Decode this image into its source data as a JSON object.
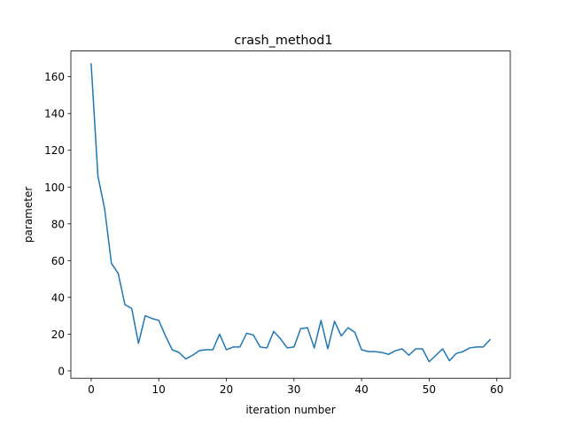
{
  "chart_data": {
    "type": "line",
    "title": "crash_method1",
    "xlabel": "iteration number",
    "ylabel": "parameter",
    "xlim": [
      -3,
      62
    ],
    "ylim": [
      -4,
      174
    ],
    "xticks": [
      0,
      10,
      20,
      30,
      40,
      50,
      60
    ],
    "yticks": [
      0,
      20,
      40,
      60,
      80,
      100,
      120,
      140,
      160
    ],
    "grid": false,
    "line_color": "#1f77b4",
    "series": [
      {
        "x": [
          0,
          1,
          2,
          3,
          4,
          5,
          6,
          7,
          8,
          9,
          10,
          11,
          12,
          13,
          14,
          15,
          16,
          17,
          18,
          19,
          20,
          21,
          22,
          23,
          24,
          25,
          26,
          27,
          28,
          29,
          30,
          31,
          32,
          33,
          34,
          35,
          36,
          37,
          38,
          39,
          40,
          41,
          42,
          43,
          44,
          45,
          46,
          47,
          48,
          49,
          50,
          51,
          52,
          53,
          54,
          55,
          56,
          57,
          58,
          59
        ],
        "values": [
          167,
          106,
          88,
          58.5,
          53,
          36,
          34,
          15,
          30,
          28.5,
          27.5,
          19,
          11.5,
          10,
          6.5,
          8.5,
          11,
          11.5,
          11.5,
          20,
          11.5,
          13,
          13,
          20.5,
          19.5,
          13,
          12.5,
          21.5,
          17.5,
          12.5,
          13,
          23,
          23.5,
          12.5,
          27.5,
          12,
          27,
          19,
          23.5,
          21,
          11.5,
          10.5,
          10.5,
          10,
          9,
          11,
          12,
          8.5,
          12,
          12,
          5,
          8.5,
          12,
          5.5,
          9.5,
          10.5,
          12.5,
          13,
          13,
          17
        ]
      }
    ]
  }
}
